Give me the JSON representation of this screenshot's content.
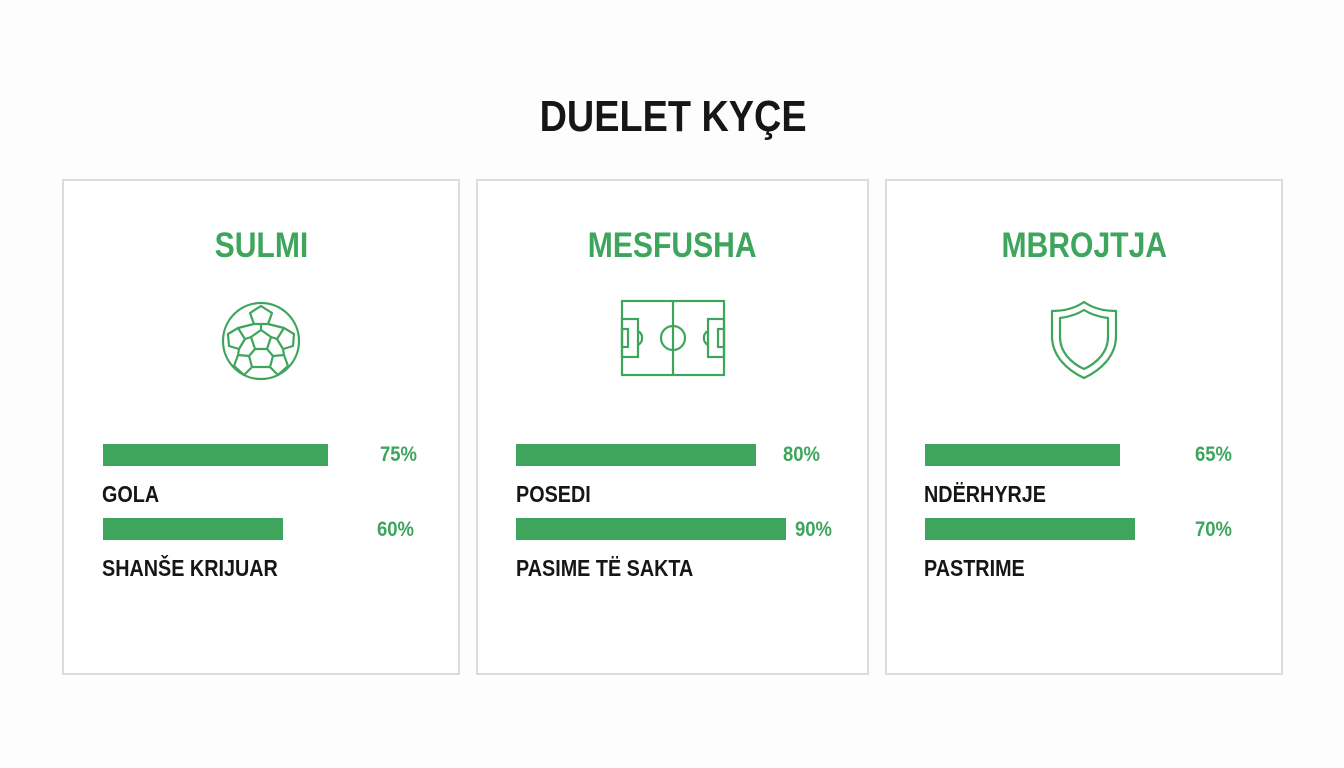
{
  "title": "DUELET KYÇE",
  "colors": {
    "accent": "#3ea55d",
    "text": "#161616",
    "border": "#dcdcdc"
  },
  "cards": [
    {
      "title": "SULMI",
      "icon": "soccer-ball-icon",
      "stats": [
        {
          "label": "GOLA",
          "value": 75,
          "value_text": "75%"
        },
        {
          "label": "SHANŠE KRIJUAR",
          "value": 60,
          "value_text": "60%"
        }
      ]
    },
    {
      "title": "MESFUSHA",
      "icon": "football-pitch-icon",
      "stats": [
        {
          "label": "POSEDI",
          "value": 80,
          "value_text": "80%"
        },
        {
          "label": "PASIME TË SAKTA",
          "value": 90,
          "value_text": "90%"
        }
      ]
    },
    {
      "title": "MBROJTJA",
      "icon": "shield-icon",
      "stats": [
        {
          "label": "NDËRHYRJE",
          "value": 65,
          "value_text": "65%"
        },
        {
          "label": "PASTRIME",
          "value": 70,
          "value_text": "70%"
        }
      ]
    }
  ]
}
